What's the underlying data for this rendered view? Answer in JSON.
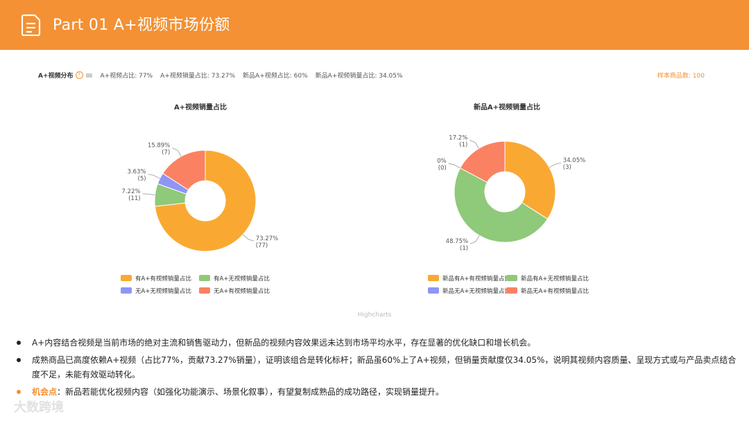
{
  "header": {
    "title": "Part 01  A+视频市场份额",
    "icon": "document-icon"
  },
  "stats": {
    "label": "A+视频分布",
    "items": [
      "A+视频占比: 77%",
      "A+视频销量占比: 73.27%",
      "新品A+视频占比: 60%",
      "新品A+视频销量占比: 34.05%"
    ],
    "sample": "样本商品数: 100"
  },
  "credit": "Highcharts",
  "chart_data": [
    {
      "type": "pie",
      "title": "A+视频销量占比",
      "slices": [
        {
          "name": "有A+有视频销量占比",
          "value": 73.27,
          "label": "73.27%",
          "count": "(77)",
          "color": "#f9a932"
        },
        {
          "name": "有A+无视频销量占比",
          "value": 7.22,
          "label": "7.22%",
          "count": "(11)",
          "color": "#8fc97a"
        },
        {
          "name": "无A+无视频销量占比",
          "value": 3.63,
          "label": "3.63%",
          "count": "(5)",
          "color": "#8f95f4"
        },
        {
          "name": "无A+有视频销量占比",
          "value": 15.89,
          "label": "15.89%",
          "count": "(7)",
          "color": "#fa8262"
        }
      ]
    },
    {
      "type": "pie",
      "title": "新品A+视频销量占比",
      "slices": [
        {
          "name": "新品有A+有视频销量占比",
          "value": 34.05,
          "label": "34.05%",
          "count": "(3)",
          "color": "#f9a932"
        },
        {
          "name": "新品有A+无视频销量占比",
          "value": 48.75,
          "label": "48.75%",
          "count": "(1)",
          "color": "#8fc97a"
        },
        {
          "name": "新品无A+无视频销量占比",
          "value": 0,
          "label": "0%",
          "count": "(0)",
          "color": "#8f95f4"
        },
        {
          "name": "新品无A+有视频销量占比",
          "value": 17.2,
          "label": "17.2%",
          "count": "(1)",
          "color": "#fa8262"
        }
      ]
    }
  ],
  "bullets": [
    {
      "key": "",
      "text": "A+内容结合视频是当前市场的绝对主流和销售驱动力，但新品的视频内容效果远未达到市场平均水平，存在显著的优化缺口和增长机会。"
    },
    {
      "key": "",
      "text": "成熟商品已高度依赖A+视频（占比77%，贡献73.27%销量），证明该组合是转化标杆；新品虽60%上了A+视频，但销量贡献度仅34.05%，说明其视频内容质量、呈现方式或与产品卖点结合度不足，未能有效驱动转化。"
    },
    {
      "key": "机会点",
      "text": "：新品若能优化视频内容（如强化功能演示、场景化叙事），有望复制成熟品的成功路径，实现销量提升。"
    }
  ],
  "watermark": "大数跨境"
}
